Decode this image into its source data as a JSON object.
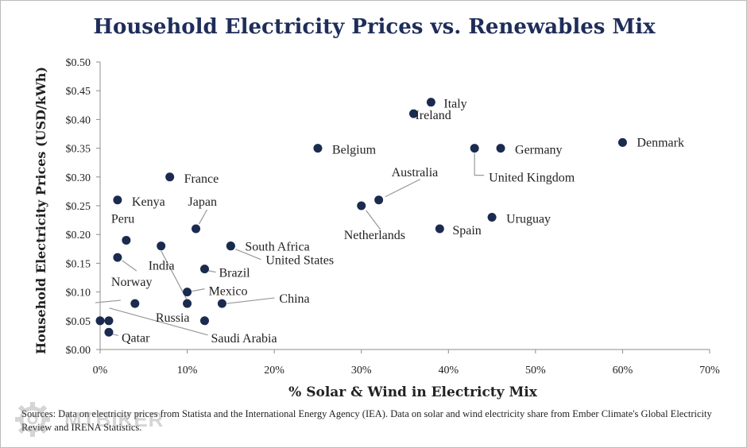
{
  "chart_data": {
    "type": "scatter",
    "title": "Household Electricity Prices vs. Renewables Mix",
    "xlabel": "% Solar & Wind in Electricty Mix",
    "ylabel": "Household Electricity Prices (USD/kWh)",
    "xlim": [
      0,
      70
    ],
    "ylim": [
      0,
      0.5
    ],
    "x_ticks": [
      "0%",
      "10%",
      "20%",
      "30%",
      "40%",
      "50%",
      "60%",
      "70%"
    ],
    "y_ticks": [
      "$0.00",
      "$0.05",
      "$0.10",
      "$0.15",
      "$0.20",
      "$0.25",
      "$0.30",
      "$0.35",
      "$0.40",
      "$0.45",
      "$0.50"
    ],
    "grid": false,
    "legend": "none",
    "marker_color": "#1b2b4f",
    "points": [
      {
        "label": "Italy",
        "x": 38,
        "y": 0.43
      },
      {
        "label": "Ireland",
        "x": 36,
        "y": 0.41
      },
      {
        "label": "Belgium",
        "x": 25,
        "y": 0.35
      },
      {
        "label": "Germany",
        "x": 46,
        "y": 0.35
      },
      {
        "label": "United Kingdom",
        "x": 43,
        "y": 0.35
      },
      {
        "label": "Denmark",
        "x": 60,
        "y": 0.36
      },
      {
        "label": "France",
        "x": 8,
        "y": 0.3
      },
      {
        "label": "Kenya",
        "x": 2,
        "y": 0.26
      },
      {
        "label": "Australia",
        "x": 32,
        "y": 0.26
      },
      {
        "label": "Netherlands",
        "x": 30,
        "y": 0.25
      },
      {
        "label": "Uruguay",
        "x": 45,
        "y": 0.23
      },
      {
        "label": "Spain",
        "x": 39,
        "y": 0.21
      },
      {
        "label": "Japan",
        "x": 11,
        "y": 0.21
      },
      {
        "label": "South Africa",
        "x": 15,
        "y": 0.18
      },
      {
        "label": "Peru",
        "x": 3,
        "y": 0.19
      },
      {
        "label": "India",
        "x": 7,
        "y": 0.18
      },
      {
        "label": "United States",
        "x": 15,
        "y": 0.18
      },
      {
        "label": "Norway",
        "x": 2,
        "y": 0.16
      },
      {
        "label": "Brazil",
        "x": 12,
        "y": 0.14
      },
      {
        "label": "Mexico",
        "x": 10,
        "y": 0.1
      },
      {
        "label": "China",
        "x": 14,
        "y": 0.08
      },
      {
        "label": "Russia",
        "x": 4,
        "y": 0.08
      },
      {
        "label": "Saudi Arabia",
        "x": 12,
        "y": 0.05
      },
      {
        "label": "Qatar",
        "x": 1,
        "y": 0.03
      }
    ],
    "extra_points": [
      {
        "x": 10,
        "y": 0.08
      },
      {
        "x": 0,
        "y": 0.05
      },
      {
        "x": 1,
        "y": 0.05
      }
    ]
  },
  "source_text": "Sources: Data on electricity prices from Statista and the International Energy Agency (IEA). Data on solar and wind electricity share from Ember Climate's Global Electricity Review and IRENA Statistics.",
  "watermark_text": "MTBIKER",
  "watermark_icon": "gear-icon"
}
